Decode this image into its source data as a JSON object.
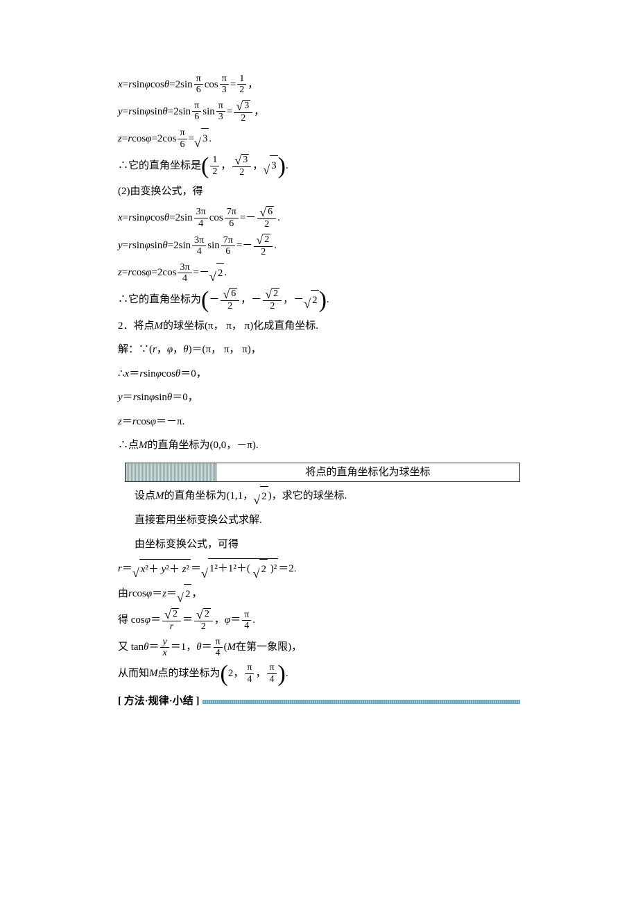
{
  "lines": {
    "l1a": "x",
    "l1b": "=",
    "l1c": "r",
    "l1d": "sin ",
    "l1e": "φ",
    "l1f": "cos ",
    "l1g": "θ",
    "l1h": "=2sin",
    "l1i_num": "π",
    "l1i_den": "6",
    "l1j": "cos",
    "l1k_num": "π",
    "l1k_den": "3",
    "l1l": "=",
    "l1m_num": "1",
    "l1m_den": "2",
    "l1n": "，",
    "l2a": "y",
    "l2b": "=",
    "l2c": "r",
    "l2d": "sin ",
    "l2e": "φ",
    "l2f": "sin ",
    "l2g": "θ",
    "l2h": "=2sin",
    "l2i_num": "π",
    "l2i_den": "6",
    "l2j": "sin",
    "l2k_num": "π",
    "l2k_den": "3",
    "l2l": "=",
    "l2m_num": "3",
    "l2m_den": "2",
    "l2n": "，",
    "l3a": "z",
    "l3b": "=",
    "l3c": "r",
    "l3d": "cos ",
    "l3e": "φ",
    "l3f": "=2cos",
    "l3g_num": "π",
    "l3g_den": "6",
    "l3h": "=",
    "l3i": "3",
    "l3j": ".",
    "l4a": "∴它的直角坐标是",
    "l4b_num": "1",
    "l4b_den": "2",
    "l4c": "，",
    "l4d_num": "3",
    "l4d_den": "2",
    "l4e": "，",
    "l4f": "3",
    "l4g": ".",
    "l5": "(2)由变换公式，得",
    "l6a": "x",
    "l6b": "=",
    "l6c": "r",
    "l6d": "sin ",
    "l6e": "φ",
    "l6f": "cos ",
    "l6g": "θ",
    "l6h": "=2sin",
    "l6i_num": "3π",
    "l6i_den": "4",
    "l6j": "cos",
    "l6k_num": "7π",
    "l6k_den": "6",
    "l6l": "=－",
    "l6m_num": "6",
    "l6m_den": "2",
    "l6n": ".",
    "l7a": "y",
    "l7b": "=",
    "l7c": "r",
    "l7d": "sin ",
    "l7e": "φ",
    "l7f": "sin ",
    "l7g": "θ",
    "l7h": "=2sin",
    "l7i_num": "3π",
    "l7i_den": "4",
    "l7j": "sin",
    "l7k_num": "7π",
    "l7k_den": "6",
    "l7l": "=－",
    "l7m_num": "2",
    "l7m_den": "2",
    "l7n": ".",
    "l8a": "z",
    "l8b": "=",
    "l8c": "r",
    "l8d": "cos ",
    "l8e": "φ",
    "l8f": "=2cos",
    "l8g_num": "3π",
    "l8g_den": "4",
    "l8h": "=－",
    "l8i": "2",
    "l8j": ".",
    "l9a": "∴它的直角坐标为",
    "l9b": "－",
    "l9b_num": "6",
    "l9b_den": "2",
    "l9c": "，",
    "l9d": "－",
    "l9d_num": "2",
    "l9d_den": "2",
    "l9e": "，",
    "l9f": "－",
    "l9g": "2",
    "l9h": ".",
    "l10": "2．将点",
    "l10b": "M",
    "l10c": "的球坐标(π， π， π)化成直角坐标.",
    "l11": "解：∵(",
    "l11b": "r",
    "l11c": "， ",
    "l11d": "φ",
    "l11e": "， ",
    "l11f": "θ",
    "l11g": ")＝(π， π， π)，",
    "l12": "∴",
    "l12a": "x",
    "l12b": "＝",
    "l12c": "r",
    "l12d": "sin ",
    "l12e": "φ",
    "l12f": "cos ",
    "l12g": "θ",
    "l12h": "＝0，",
    "l13a": "y",
    "l13b": "＝",
    "l13c": "r",
    "l13d": "sin ",
    "l13e": "φ",
    "l13f": "sin ",
    "l13g": "θ",
    "l13h": "＝0，",
    "l14a": "z",
    "l14b": "＝",
    "l14c": "r",
    "l14d": "cos ",
    "l14e": "φ",
    "l14f": "＝－π.",
    "l15": "∴点",
    "l15b": "M",
    "l15c": "的直角坐标为(0,0，－π).",
    "box_title": "将点的直角坐标化为球坐标",
    "l16": "设点",
    "l16b": "M",
    "l16c": "的直角坐标为(1,1，",
    "l16d": "2",
    "l16e": ")，求它的球坐标.",
    "l17": "直接套用坐标变换公式求解.",
    "l18": "由坐标变换公式，可得",
    "l19a": "r",
    "l19b": "＝",
    "l19c": "x",
    "l19d": "²＋",
    "l19e": "y",
    "l19f": "²＋",
    "l19g": "z",
    "l19h": "²",
    "l19i": "＝",
    "l19j": "1²＋1²＋(",
    "l19k": "2",
    "l19l": ")²",
    "l19m": "＝2.",
    "l20a": "由 ",
    "l20b": "r",
    "l20c": "cos ",
    "l20d": "φ",
    "l20e": "＝",
    "l20f": "z",
    "l20g": "＝",
    "l20h": "2",
    "l20i": "，",
    "l21a": "得 cos ",
    "l21b": "φ",
    "l21c": "＝",
    "l21d_num": "2",
    "l21d_den": "r",
    "l21e": "＝",
    "l21f_num": "2",
    "l21f_den": "2",
    "l21g": "， ",
    "l21h": "φ",
    "l21i": "＝",
    "l21j_num": "π",
    "l21j_den": "4",
    "l21k": ".",
    "l22a": "又 tan ",
    "l22b": "θ",
    "l22c": "＝",
    "l22d_num": "y",
    "l22d_den": "x",
    "l22e": "＝1， ",
    "l22f": "θ",
    "l22g": "＝",
    "l22h_num": "π",
    "l22h_den": "4",
    "l22i": "(",
    "l22j": "M",
    "l22k": "在第一象限)，",
    "l23a": "从而知",
    "l23b": "M",
    "l23c": "点的球坐标为",
    "l23d": "2，",
    "l23e_num": "π",
    "l23e_den": "4",
    "l23f": "，",
    "l23g_num": "π",
    "l23g_den": "4",
    "l23h": ".",
    "summary": "[ 方法·规律·小结 ]"
  }
}
